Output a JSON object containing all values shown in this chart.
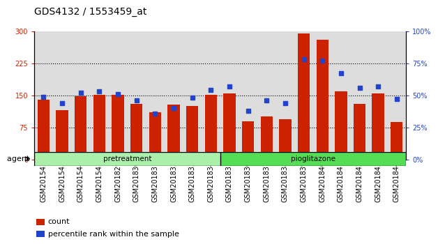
{
  "title": "GDS4132 / 1553459_at",
  "categories": [
    "GSM201542",
    "GSM201543",
    "GSM201544",
    "GSM201545",
    "GSM201829",
    "GSM201830",
    "GSM201831",
    "GSM201832",
    "GSM201833",
    "GSM201834",
    "GSM201835",
    "GSM201836",
    "GSM201837",
    "GSM201838",
    "GSM201839",
    "GSM201840",
    "GSM201841",
    "GSM201842",
    "GSM201843",
    "GSM201844"
  ],
  "counts": [
    140,
    115,
    148,
    152,
    151,
    130,
    110,
    128,
    125,
    152,
    155,
    90,
    100,
    95,
    295,
    280,
    160,
    130,
    155,
    88
  ],
  "percentiles": [
    49,
    44,
    52,
    53,
    51,
    46,
    36,
    40,
    48,
    54,
    57,
    38,
    46,
    44,
    78,
    77,
    67,
    56,
    57,
    47
  ],
  "bar_color": "#cc2200",
  "dot_color": "#2244cc",
  "pretreatment_label": "pretreatment",
  "pioglitazone_label": "pioglitazone",
  "agent_label": "agent",
  "legend_count": "count",
  "legend_percentile": "percentile rank within the sample",
  "ylim_left": [
    0,
    300
  ],
  "ylim_right": [
    0,
    100
  ],
  "yticks_left": [
    0,
    75,
    150,
    225,
    300
  ],
  "ytick_labels_left": [
    "0",
    "75",
    "150",
    "225",
    "300"
  ],
  "yticks_right": [
    0,
    25,
    50,
    75,
    100
  ],
  "ytick_labels_right": [
    "0%",
    "25%",
    "50%",
    "75%",
    "100%"
  ],
  "hlines": [
    75,
    150,
    225
  ],
  "plot_bg_color": "#dddddd",
  "pretreat_color": "#aaf0aa",
  "pioglitazone_color": "#55dd55",
  "title_fontsize": 10,
  "tick_fontsize": 7,
  "bar_width": 0.65,
  "n_pretreat": 10,
  "n_total": 20
}
